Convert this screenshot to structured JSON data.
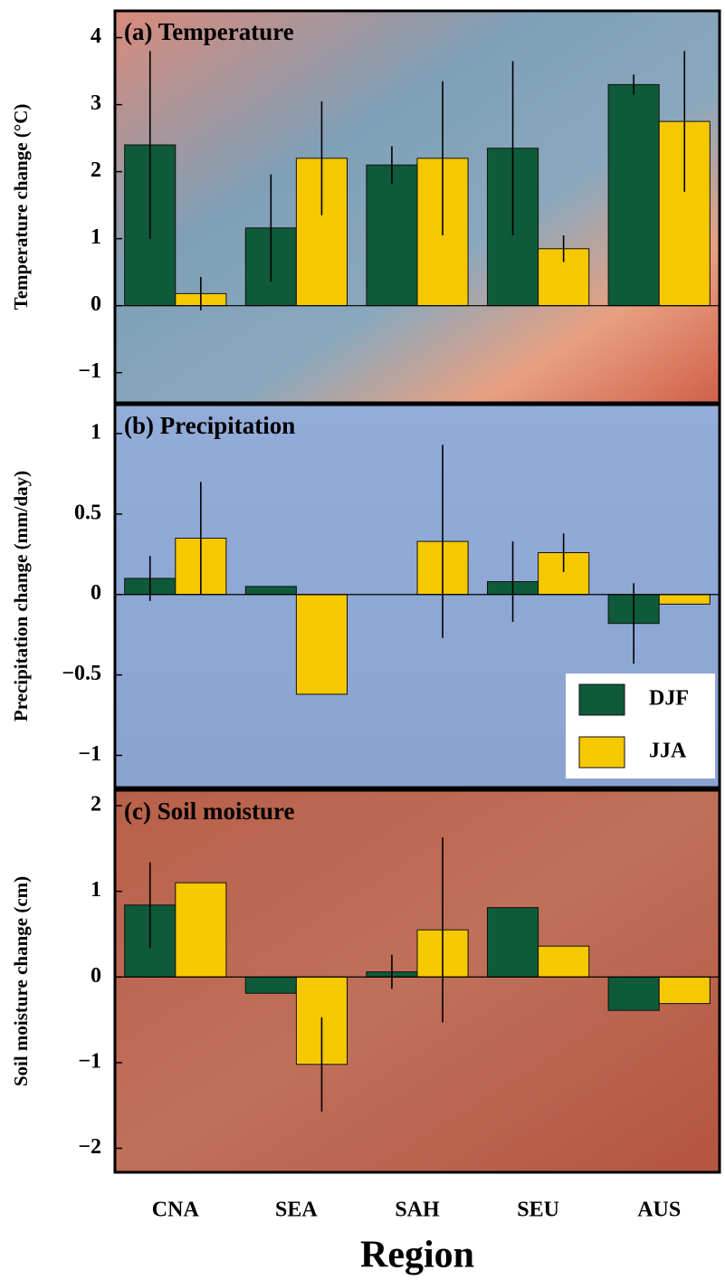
{
  "chart_data": [
    {
      "type": "bar",
      "title": "(a) Temperature",
      "ylabel": "Temperature change (°C)",
      "ylim": [
        -1.45,
        4.4
      ],
      "yticks": [
        {
          "value": -1,
          "label": "−1"
        },
        0,
        1,
        2,
        3,
        4
      ],
      "series": [
        {
          "color": "#0e5a3a",
          "values": [
            2.4,
            1.16,
            2.1,
            2.35,
            3.3
          ],
          "errors": [
            1.4,
            0.8,
            0.28,
            1.3,
            0.15
          ]
        },
        {
          "color": "#f5c800",
          "values": [
            0.18,
            2.2,
            2.2,
            0.85,
            2.75
          ],
          "errors": [
            0.25,
            0.85,
            1.15,
            0.2,
            1.05
          ]
        }
      ]
    },
    {
      "type": "bar",
      "title": "(b) Precipitation",
      "ylabel": "Precipitation change (mm/day)",
      "ylim": [
        -1.2,
        1.18
      ],
      "yticks": [
        {
          "value": -1,
          "label": "−1"
        },
        {
          "value": -0.5,
          "label": "−0.5"
        },
        0,
        0.5,
        1
      ],
      "legend": "lower right",
      "series": [
        {
          "name": "DJF",
          "color": "#0e5a3a",
          "values": [
            0.1,
            0.05,
            0,
            0.08,
            -0.18
          ],
          "errors": [
            0.14,
            null,
            null,
            0.25,
            0.25
          ]
        },
        {
          "name": "JJA",
          "color": "#f5c800",
          "values": [
            0.35,
            -0.62,
            0.33,
            0.26,
            -0.06
          ],
          "errors": [
            0.35,
            null,
            0.6,
            0.12,
            null
          ]
        }
      ]
    },
    {
      "type": "bar",
      "title": "(c) Soil moisture",
      "ylabel": "Soil moisture change (cm)",
      "xlabel": "Region",
      "categories": [
        "CNA",
        "SEA",
        "SAH",
        "SEU",
        "AUS"
      ],
      "ylim": [
        -2.28,
        2.18
      ],
      "yticks": [
        {
          "value": -2,
          "label": "−2"
        },
        {
          "value": -1,
          "label": "−1"
        },
        0,
        1,
        2
      ],
      "series": [
        {
          "color": "#0e5a3a",
          "values": [
            0.84,
            -0.19,
            0.06,
            0.81,
            -0.39
          ],
          "errors": [
            0.5,
            null,
            0.2,
            null,
            null
          ]
        },
        {
          "color": "#f5c800",
          "values": [
            1.1,
            -1.02,
            0.55,
            0.36,
            -0.31
          ],
          "errors": [
            null,
            0.55,
            1.08,
            null,
            null
          ]
        }
      ]
    }
  ]
}
